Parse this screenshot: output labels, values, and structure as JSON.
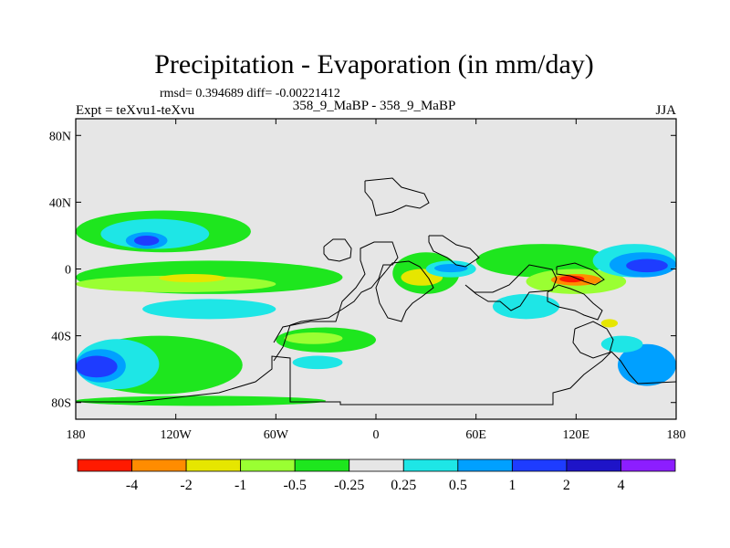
{
  "chart_data": {
    "type": "heatmap",
    "title": "Precipitation - Evaporation (in mm/day)",
    "stats_line": "rmsd= 0.394689 diff= -0.00221412",
    "left_label": "Expt = teXvu1-teXvu",
    "center_label": "358_9_MaBP - 358_9_MaBP",
    "right_label": "JJA",
    "lon_range": [
      -180,
      180
    ],
    "lat_range": [
      -90,
      90
    ],
    "x_ticks": [
      {
        "value": -180,
        "label": "180"
      },
      {
        "value": -120,
        "label": "120W"
      },
      {
        "value": -60,
        "label": "60W"
      },
      {
        "value": 0,
        "label": "0"
      },
      {
        "value": 60,
        "label": "60E"
      },
      {
        "value": 120,
        "label": "120E"
      },
      {
        "value": 180,
        "label": "180"
      }
    ],
    "y_ticks": [
      {
        "value": 80,
        "label": "80N"
      },
      {
        "value": 40,
        "label": "40N"
      },
      {
        "value": 0,
        "label": "0"
      },
      {
        "value": -40,
        "label": "40S"
      },
      {
        "value": -80,
        "label": "80S"
      }
    ],
    "levels": [
      {
        "label": "-4",
        "color": "#ff1a00"
      },
      {
        "label": "-2",
        "color": "#ff8c00"
      },
      {
        "label": "-1",
        "color": "#e6e600"
      },
      {
        "label": "-0.5",
        "color": "#9aff32"
      },
      {
        "label": "-0.25",
        "color": "#1ee61e"
      },
      {
        "label": "0.25",
        "color": "#e6e6e6"
      },
      {
        "label": "0.5",
        "color": "#1ee6e6"
      },
      {
        "label": "1",
        "color": "#00a0ff"
      },
      {
        "label": "2",
        "color": "#1e3cff"
      },
      {
        "label": "4",
        "color": "#1e14c8"
      },
      {
        "label": "",
        "color": "#8c1eff"
      }
    ],
    "background_color": "#e6e6e6",
    "regions": [
      {
        "name": "n-pacific-green",
        "lon": [
          -180,
          -75
        ],
        "lat": [
          10,
          35
        ],
        "level": 4
      },
      {
        "name": "n-pacific-cyan",
        "lon": [
          -165,
          -100
        ],
        "lat": [
          12,
          30
        ],
        "level": 6
      },
      {
        "name": "n-pacific-blue",
        "lon": [
          -150,
          -125
        ],
        "lat": [
          12,
          22
        ],
        "level": 7
      },
      {
        "name": "n-pacific-deep",
        "lon": [
          -145,
          -130
        ],
        "lat": [
          14,
          20
        ],
        "level": 8
      },
      {
        "name": "eq-pacific-green",
        "lon": [
          -180,
          -20
        ],
        "lat": [
          -15,
          5
        ],
        "level": 4
      },
      {
        "name": "eq-pacific-lime",
        "lon": [
          -180,
          -60
        ],
        "lat": [
          -14,
          -4
        ],
        "level": 3
      },
      {
        "name": "eq-pacific-yellow",
        "lon": [
          -130,
          -90
        ],
        "lat": [
          -8,
          -3
        ],
        "level": 2
      },
      {
        "name": "eq-pacific-cyan",
        "lon": [
          -140,
          -60
        ],
        "lat": [
          -30,
          -18
        ],
        "level": 6
      },
      {
        "name": "s-ocean-green",
        "lon": [
          -180,
          -80
        ],
        "lat": [
          -75,
          -40
        ],
        "level": 4
      },
      {
        "name": "s-ocean-cyan",
        "lon": [
          -180,
          -130
        ],
        "lat": [
          -72,
          -42
        ],
        "level": 6
      },
      {
        "name": "s-ocean-blue",
        "lon": [
          -180,
          -150
        ],
        "lat": [
          -68,
          -48
        ],
        "level": 7
      },
      {
        "name": "s-ocean-deep",
        "lon": [
          -180,
          -155
        ],
        "lat": [
          -65,
          -52
        ],
        "level": 8
      },
      {
        "name": "antarctic-coast-green",
        "lon": [
          -180,
          -30
        ],
        "lat": [
          -82,
          -76
        ],
        "level": 4
      },
      {
        "name": "s-atlantic-green",
        "lon": [
          -60,
          0
        ],
        "lat": [
          -50,
          -35
        ],
        "level": 4
      },
      {
        "name": "s-atlantic-lime",
        "lon": [
          -55,
          -20
        ],
        "lat": [
          -45,
          -38
        ],
        "level": 3
      },
      {
        "name": "s-atlantic-cyan",
        "lon": [
          -50,
          -20
        ],
        "lat": [
          -60,
          -52
        ],
        "level": 6
      },
      {
        "name": "africa-green",
        "lon": [
          10,
          50
        ],
        "lat": [
          -15,
          10
        ],
        "level": 4
      },
      {
        "name": "africa-yellow",
        "lon": [
          15,
          40
        ],
        "lat": [
          -10,
          0
        ],
        "level": 2
      },
      {
        "name": "africa-cyan",
        "lon": [
          30,
          60
        ],
        "lat": [
          -5,
          5
        ],
        "level": 6
      },
      {
        "name": "africa-blue",
        "lon": [
          35,
          55
        ],
        "lat": [
          -2,
          3
        ],
        "level": 7
      },
      {
        "name": "indian-green",
        "lon": [
          60,
          140
        ],
        "lat": [
          -5,
          15
        ],
        "level": 4
      },
      {
        "name": "indian-cyan",
        "lon": [
          70,
          110
        ],
        "lat": [
          -30,
          -15
        ],
        "level": 6
      },
      {
        "name": "maritime-lime",
        "lon": [
          90,
          150
        ],
        "lat": [
          -15,
          0
        ],
        "level": 3
      },
      {
        "name": "maritime-orange",
        "lon": [
          105,
          135
        ],
        "lat": [
          -10,
          -3
        ],
        "level": 1
      },
      {
        "name": "maritime-red",
        "lon": [
          110,
          125
        ],
        "lat": [
          -8,
          -4
        ],
        "level": 0
      },
      {
        "name": "w-pacific-cyan",
        "lon": [
          130,
          180
        ],
        "lat": [
          -5,
          15
        ],
        "level": 6
      },
      {
        "name": "w-pacific-blue",
        "lon": [
          140,
          180
        ],
        "lat": [
          -5,
          10
        ],
        "level": 7
      },
      {
        "name": "w-pacific-deep",
        "lon": [
          150,
          175
        ],
        "lat": [
          -2,
          6
        ],
        "level": 8
      },
      {
        "name": "s-pacific-blue",
        "lon": [
          145,
          180
        ],
        "lat": [
          -70,
          -45
        ],
        "level": 7
      },
      {
        "name": "s-pacific-cyan",
        "lon": [
          135,
          160
        ],
        "lat": [
          -50,
          -40
        ],
        "level": 6
      },
      {
        "name": "s-pacific-yellow",
        "lon": [
          135,
          145
        ],
        "lat": [
          -35,
          -30
        ],
        "level": 2
      }
    ]
  }
}
